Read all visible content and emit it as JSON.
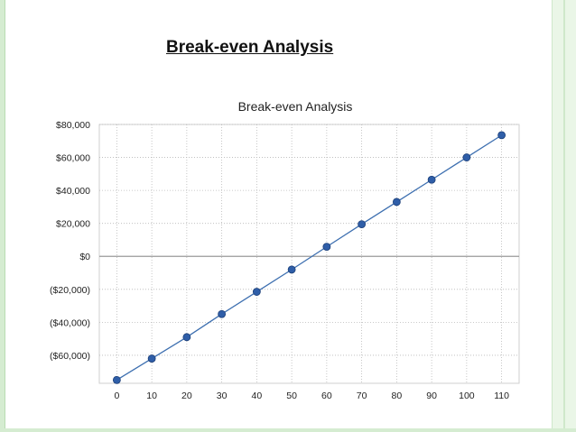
{
  "slide": {
    "title": "Break-even Analysis"
  },
  "colors": {
    "line": "#3d6fb0",
    "marker_fill": "#2f5ea8",
    "marker_stroke": "#1c3f78",
    "grid": "#b8b8b8",
    "zero_line": "#999999"
  },
  "chart_data": {
    "type": "line",
    "title": "Break-even Analysis",
    "xlabel": "",
    "ylabel": "",
    "x": [
      0,
      10,
      20,
      30,
      40,
      50,
      60,
      70,
      80,
      90,
      100,
      110
    ],
    "series": [
      {
        "values": [
          -75000,
          -62000,
          -49000,
          -35000,
          -21500,
          -8000,
          5800,
          19500,
          33000,
          46500,
          60000,
          73500
        ],
        "marker": "circle"
      }
    ],
    "x_tick_labels": [
      "0",
      "10",
      "20",
      "30",
      "40",
      "50",
      "60",
      "70",
      "80",
      "90",
      "100",
      "110"
    ],
    "y_ticks": [
      80000,
      60000,
      40000,
      20000,
      0,
      -20000,
      -40000,
      -60000
    ],
    "y_tick_labels": [
      "$80,000",
      "$60,000",
      "$40,000",
      "$20,000",
      "$0",
      "($20,000)",
      "($40,000)",
      "($60,000)"
    ],
    "ylim": [
      -77000,
      80000
    ],
    "grid": true,
    "legend": "none"
  }
}
